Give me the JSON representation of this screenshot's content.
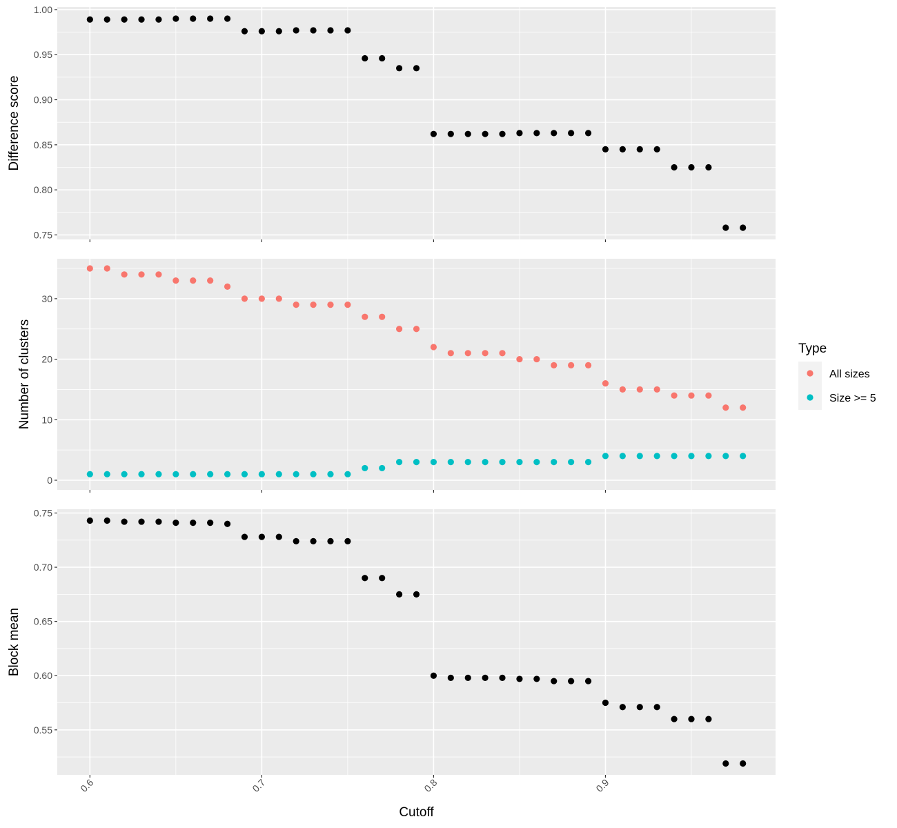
{
  "chart_data": [
    {
      "type": "scatter",
      "ylabel": "Difference score",
      "ylim": [
        0.745,
        1.003
      ],
      "yticks": [
        "0.75",
        "0.80",
        "0.85",
        "0.90",
        "0.95",
        "1.00"
      ],
      "grid": true,
      "series": [
        {
          "color": "#000000",
          "x": [
            0.6,
            0.61,
            0.62,
            0.63,
            0.64,
            0.65,
            0.66,
            0.67,
            0.68,
            0.69,
            0.7,
            0.71,
            0.72,
            0.73,
            0.74,
            0.75,
            0.76,
            0.77,
            0.78,
            0.79,
            0.8,
            0.81,
            0.82,
            0.83,
            0.84,
            0.85,
            0.86,
            0.87,
            0.88,
            0.89,
            0.9,
            0.91,
            0.92,
            0.93,
            0.94,
            0.95,
            0.96,
            0.97,
            0.98
          ],
          "y": [
            0.989,
            0.989,
            0.989,
            0.989,
            0.989,
            0.99,
            0.99,
            0.99,
            0.99,
            0.976,
            0.976,
            0.976,
            0.977,
            0.977,
            0.977,
            0.977,
            0.946,
            0.946,
            0.935,
            0.935,
            0.862,
            0.862,
            0.862,
            0.862,
            0.862,
            0.863,
            0.863,
            0.863,
            0.863,
            0.863,
            0.845,
            0.845,
            0.845,
            0.845,
            0.825,
            0.825,
            0.825,
            0.758,
            0.758
          ]
        }
      ]
    },
    {
      "type": "scatter",
      "ylabel": "Number of clusters",
      "ylim": [
        -1.6,
        36.6
      ],
      "yticks": [
        "0",
        "10",
        "20",
        "30"
      ],
      "grid": true,
      "legend": {
        "title": "Type",
        "position": "right"
      },
      "series": [
        {
          "name": "All sizes",
          "color": "#F8766D",
          "x": [
            0.6,
            0.61,
            0.62,
            0.63,
            0.64,
            0.65,
            0.66,
            0.67,
            0.68,
            0.69,
            0.7,
            0.71,
            0.72,
            0.73,
            0.74,
            0.75,
            0.76,
            0.77,
            0.78,
            0.79,
            0.8,
            0.81,
            0.82,
            0.83,
            0.84,
            0.85,
            0.86,
            0.87,
            0.88,
            0.89,
            0.9,
            0.91,
            0.92,
            0.93,
            0.94,
            0.95,
            0.96,
            0.97,
            0.98
          ],
          "y": [
            35,
            35,
            34,
            34,
            34,
            33,
            33,
            33,
            32,
            30,
            30,
            30,
            29,
            29,
            29,
            29,
            27,
            27,
            25,
            25,
            22,
            21,
            21,
            21,
            21,
            20,
            20,
            19,
            19,
            19,
            16,
            15,
            15,
            15,
            14,
            14,
            14,
            12,
            12
          ]
        },
        {
          "name": "Size >= 5",
          "color": "#00BFC4",
          "x": [
            0.6,
            0.61,
            0.62,
            0.63,
            0.64,
            0.65,
            0.66,
            0.67,
            0.68,
            0.69,
            0.7,
            0.71,
            0.72,
            0.73,
            0.74,
            0.75,
            0.76,
            0.77,
            0.78,
            0.79,
            0.8,
            0.81,
            0.82,
            0.83,
            0.84,
            0.85,
            0.86,
            0.87,
            0.88,
            0.89,
            0.9,
            0.91,
            0.92,
            0.93,
            0.94,
            0.95,
            0.96,
            0.97,
            0.98
          ],
          "y": [
            1,
            1,
            1,
            1,
            1,
            1,
            1,
            1,
            1,
            1,
            1,
            1,
            1,
            1,
            1,
            1,
            2,
            2,
            3,
            3,
            3,
            3,
            3,
            3,
            3,
            3,
            3,
            3,
            3,
            3,
            4,
            4,
            4,
            4,
            4,
            4,
            4,
            4,
            4
          ]
        }
      ]
    },
    {
      "type": "scatter",
      "xlabel": "Cutoff",
      "ylabel": "Block mean",
      "xlim": [
        0.581,
        0.999
      ],
      "ylim": [
        0.5085,
        0.7535
      ],
      "xticks": [
        "0.6",
        "0.7",
        "0.8",
        "0.9"
      ],
      "yticks": [
        "0.55",
        "0.60",
        "0.65",
        "0.70",
        "0.75"
      ],
      "grid": true,
      "series": [
        {
          "color": "#000000",
          "x": [
            0.6,
            0.61,
            0.62,
            0.63,
            0.64,
            0.65,
            0.66,
            0.67,
            0.68,
            0.69,
            0.7,
            0.71,
            0.72,
            0.73,
            0.74,
            0.75,
            0.76,
            0.77,
            0.78,
            0.79,
            0.8,
            0.81,
            0.82,
            0.83,
            0.84,
            0.85,
            0.86,
            0.87,
            0.88,
            0.89,
            0.9,
            0.91,
            0.92,
            0.93,
            0.94,
            0.95,
            0.96,
            0.97,
            0.98
          ],
          "y": [
            0.743,
            0.743,
            0.742,
            0.742,
            0.742,
            0.741,
            0.741,
            0.741,
            0.74,
            0.728,
            0.728,
            0.728,
            0.724,
            0.724,
            0.724,
            0.724,
            0.69,
            0.69,
            0.675,
            0.675,
            0.6,
            0.598,
            0.598,
            0.598,
            0.598,
            0.597,
            0.597,
            0.595,
            0.595,
            0.595,
            0.575,
            0.571,
            0.571,
            0.571,
            0.56,
            0.56,
            0.56,
            0.519,
            0.519
          ]
        }
      ]
    }
  ]
}
